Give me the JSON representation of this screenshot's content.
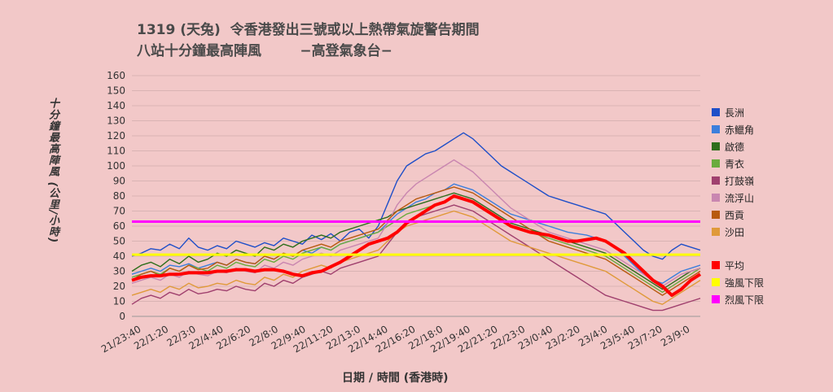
{
  "chart_data": {
    "type": "line",
    "title_line1": "1319 (天兔)  令香港發出三號或以上熱帶氣旋警告期間",
    "title_line2": "八站十分鐘最高陣風        −高登氣象台−",
    "ylabel": "十分鐘最高陣風  (公里/小時)",
    "xlabel": "日期 / 時間 (香港時)",
    "ylim": [
      0,
      160
    ],
    "yticks": [
      0,
      10,
      20,
      30,
      40,
      50,
      60,
      70,
      80,
      90,
      100,
      110,
      120,
      130,
      140,
      150,
      160
    ],
    "xticks": [
      "21/23:40",
      "22/1:20",
      "22/3:0",
      "22/4:40",
      "22/6:20",
      "22/8:0",
      "22/9:40",
      "22/11:20",
      "22/13:0",
      "22/14:40",
      "22/16:20",
      "22/18:0",
      "22/19:40",
      "22/21:20",
      "22/23:0",
      "23/0:40",
      "23/2:20",
      "23/4:0",
      "23/5:40",
      "23/7:20",
      "23/9:0"
    ],
    "grid": true,
    "legend_position": "right",
    "series": [
      {
        "name": "長洲",
        "color": "#1f4fc8",
        "values": [
          40,
          42,
          45,
          44,
          48,
          45,
          52,
          46,
          44,
          47,
          45,
          50,
          48,
          46,
          49,
          47,
          52,
          50,
          48,
          54,
          51,
          55,
          50,
          56,
          58,
          52,
          60,
          75,
          90,
          100,
          104,
          108,
          110,
          114,
          118,
          122,
          118,
          112,
          106,
          100,
          96,
          92,
          88,
          84,
          80,
          78,
          76,
          74,
          72,
          70,
          68,
          62,
          56,
          50,
          44,
          40,
          38,
          44,
          48,
          46,
          44
        ]
      },
      {
        "name": "赤鱲角",
        "color": "#3d7fdc",
        "values": [
          28,
          30,
          32,
          30,
          34,
          33,
          35,
          32,
          34,
          36,
          34,
          38,
          36,
          35,
          40,
          38,
          42,
          40,
          44,
          42,
          46,
          44,
          48,
          50,
          52,
          54,
          56,
          62,
          68,
          72,
          76,
          78,
          82,
          84,
          88,
          86,
          84,
          80,
          76,
          72,
          68,
          66,
          64,
          62,
          60,
          58,
          56,
          55,
          54,
          52,
          50,
          46,
          40,
          34,
          28,
          24,
          22,
          26,
          30,
          32,
          34
        ]
      },
      {
        "name": "啟德",
        "color": "#2f6e1c",
        "values": [
          30,
          34,
          36,
          33,
          38,
          35,
          40,
          36,
          38,
          42,
          40,
          44,
          42,
          40,
          46,
          44,
          48,
          46,
          50,
          52,
          54,
          52,
          56,
          58,
          60,
          62,
          64,
          66,
          70,
          72,
          74,
          76,
          78,
          80,
          82,
          80,
          78,
          74,
          70,
          66,
          62,
          60,
          58,
          56,
          54,
          52,
          50,
          48,
          46,
          44,
          42,
          38,
          34,
          30,
          26,
          22,
          18,
          22,
          26,
          30,
          32
        ]
      },
      {
        "name": "青衣",
        "color": "#6aab3e",
        "values": [
          26,
          28,
          30,
          28,
          32,
          30,
          34,
          32,
          30,
          34,
          32,
          36,
          34,
          33,
          38,
          36,
          40,
          38,
          42,
          44,
          46,
          44,
          48,
          50,
          52,
          54,
          56,
          60,
          64,
          68,
          70,
          72,
          74,
          76,
          80,
          78,
          76,
          72,
          68,
          64,
          60,
          58,
          56,
          54,
          52,
          50,
          48,
          46,
          44,
          42,
          40,
          36,
          32,
          28,
          24,
          20,
          16,
          20,
          24,
          28,
          32
        ]
      },
      {
        "name": "打鼓嶺",
        "color": "#a0406e",
        "values": [
          8,
          12,
          14,
          12,
          16,
          14,
          18,
          15,
          16,
          18,
          17,
          20,
          18,
          17,
          22,
          20,
          24,
          22,
          26,
          28,
          30,
          28,
          32,
          34,
          36,
          38,
          40,
          48,
          56,
          62,
          66,
          68,
          70,
          72,
          74,
          72,
          70,
          66,
          62,
          58,
          54,
          50,
          46,
          42,
          38,
          34,
          30,
          26,
          22,
          18,
          14,
          12,
          10,
          8,
          6,
          4,
          4,
          6,
          8,
          10,
          12
        ]
      },
      {
        "name": "流浮山",
        "color": "#c986b0",
        "values": [
          22,
          24,
          26,
          24,
          28,
          26,
          30,
          28,
          27,
          30,
          29,
          32,
          30,
          29,
          34,
          32,
          36,
          34,
          38,
          40,
          42,
          40,
          44,
          46,
          48,
          50,
          52,
          62,
          74,
          82,
          88,
          92,
          96,
          100,
          104,
          100,
          96,
          90,
          84,
          78,
          72,
          68,
          64,
          60,
          56,
          54,
          52,
          50,
          48,
          46,
          44,
          40,
          36,
          32,
          28,
          24,
          20,
          24,
          28,
          30,
          32
        ]
      },
      {
        "name": "西貢",
        "color": "#b85a10",
        "values": [
          24,
          28,
          30,
          27,
          32,
          30,
          34,
          31,
          32,
          36,
          34,
          38,
          36,
          35,
          40,
          38,
          42,
          40,
          44,
          46,
          48,
          46,
          50,
          52,
          54,
          56,
          58,
          64,
          70,
          74,
          78,
          80,
          82,
          84,
          86,
          84,
          82,
          78,
          74,
          70,
          66,
          62,
          58,
          54,
          50,
          48,
          46,
          44,
          42,
          40,
          38,
          34,
          30,
          26,
          22,
          18,
          14,
          18,
          22,
          26,
          30
        ]
      },
      {
        "name": "沙田",
        "color": "#e09a3a",
        "values": [
          14,
          16,
          18,
          16,
          20,
          18,
          22,
          19,
          20,
          22,
          21,
          24,
          22,
          21,
          26,
          24,
          28,
          26,
          30,
          32,
          34,
          32,
          36,
          38,
          40,
          42,
          44,
          50,
          56,
          60,
          62,
          64,
          66,
          68,
          70,
          68,
          66,
          62,
          58,
          54,
          50,
          48,
          46,
          44,
          42,
          40,
          38,
          36,
          34,
          32,
          30,
          26,
          22,
          18,
          14,
          10,
          8,
          12,
          16,
          20,
          24
        ]
      },
      {
        "name": "平均",
        "color": "#ff0000",
        "values": [
          24,
          26,
          27,
          27,
          28,
          28,
          29,
          29,
          29,
          30,
          30,
          31,
          31,
          30,
          31,
          31,
          30,
          28,
          27,
          29,
          30,
          33,
          36,
          40,
          44,
          48,
          50,
          52,
          56,
          62,
          66,
          70,
          74,
          76,
          80,
          78,
          76,
          72,
          68,
          64,
          60,
          58,
          56,
          55,
          54,
          52,
          50,
          50,
          51,
          52,
          50,
          46,
          42,
          36,
          30,
          24,
          20,
          14,
          18,
          24,
          28
        ]
      }
    ],
    "reference_lines": [
      {
        "name": "強風下限",
        "color": "#ffff00",
        "value": 41
      },
      {
        "name": "烈風下限",
        "color": "#ff00ff",
        "value": 63
      }
    ]
  }
}
